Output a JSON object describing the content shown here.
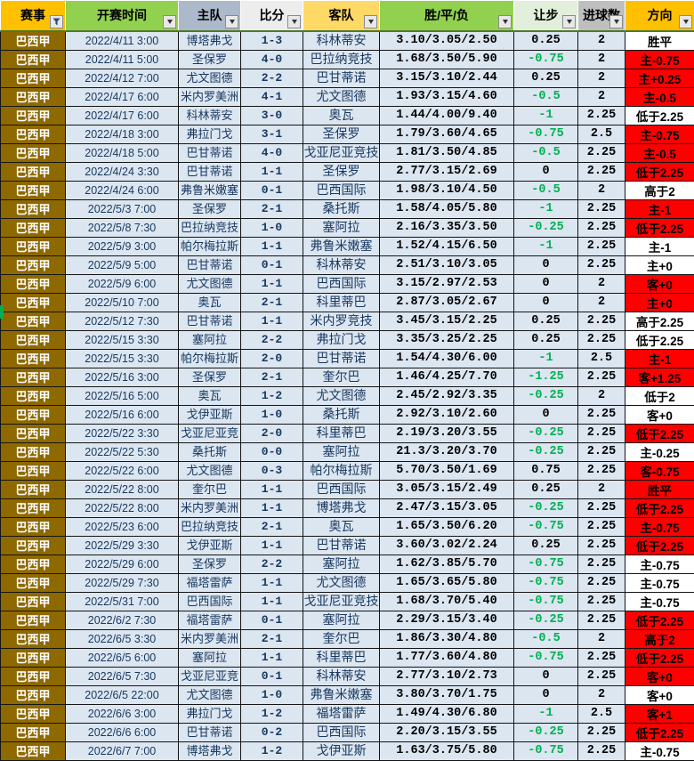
{
  "header": {
    "columns": [
      {
        "key": "league",
        "label": "赛事",
        "bg": "#FFC000",
        "button": "filter"
      },
      {
        "key": "time",
        "label": "开赛时间",
        "bg": "#92D050",
        "button": "dropdown"
      },
      {
        "key": "home",
        "label": "主队",
        "bg": "#ACB9CA",
        "button": "dropdown"
      },
      {
        "key": "score",
        "label": "比分",
        "bg": "#EDEDED",
        "button": "dropdown"
      },
      {
        "key": "away",
        "label": "客队",
        "bg": "#FFD966",
        "button": "dropdown"
      },
      {
        "key": "odds",
        "label": "胜/平/负",
        "bg": "#92D050",
        "button": "dropdown"
      },
      {
        "key": "handicap",
        "label": "让步",
        "bg": "#E2EFDA",
        "button": "dropdown"
      },
      {
        "key": "goals",
        "label": "进球数",
        "bg": "#BFBFBF",
        "button": "dropdown"
      },
      {
        "key": "direction",
        "label": "方向",
        "bg": "#FFC000",
        "button": "dropdown"
      }
    ]
  },
  "colors": {
    "row_bg": "#DCE6F1",
    "league_bg": "#8E6900",
    "red": "#FF0000",
    "green": "#00B050",
    "navy": "#17375E",
    "grid": "#151515",
    "header_underline": "#4E7A27",
    "btn_bg": "#E8E8E8",
    "btn_border": "#8A8A8A"
  },
  "rows": [
    {
      "league": "巴西甲",
      "time": "2022/4/11 3:00",
      "home": "博塔弗戈",
      "score": "1-3",
      "away": "科林蒂安",
      "odds": "3.10/3.05/2.50",
      "handicap": "0.25",
      "goals": "2",
      "direction": "胜平",
      "dir_red": false
    },
    {
      "league": "巴西甲",
      "time": "2022/4/11 5:00",
      "home": "圣保罗",
      "score": "4-0",
      "away": "巴拉纳竞技",
      "odds": "1.68/3.50/5.90",
      "handicap": "-0.75",
      "goals": "2",
      "direction": "主-0.75",
      "dir_red": true
    },
    {
      "league": "巴西甲",
      "time": "2022/4/12 7:00",
      "home": "尤文图德",
      "score": "2-2",
      "away": "巴甘蒂诺",
      "odds": "3.15/3.10/2.44",
      "handicap": "0.25",
      "goals": "2",
      "direction": "主+0.25",
      "dir_red": true
    },
    {
      "league": "巴西甲",
      "time": "2022/4/17 6:00",
      "home": "米内罗美洲",
      "score": "4-1",
      "away": "尤文图德",
      "odds": "1.93/3.15/4.60",
      "handicap": "-0.5",
      "goals": "2",
      "direction": "主-0.5",
      "dir_red": true
    },
    {
      "league": "巴西甲",
      "time": "2022/4/17 6:00",
      "home": "科林蒂安",
      "score": "3-0",
      "away": "奥瓦",
      "odds": "1.44/4.00/9.40",
      "handicap": "-1",
      "goals": "2.25",
      "direction": "低于2.25",
      "dir_red": false
    },
    {
      "league": "巴西甲",
      "time": "2022/4/18 3:00",
      "home": "弗拉门戈",
      "score": "3-1",
      "away": "圣保罗",
      "odds": "1.79/3.60/4.65",
      "handicap": "-0.75",
      "goals": "2.5",
      "direction": "主-0.75",
      "dir_red": true
    },
    {
      "league": "巴西甲",
      "time": "2022/4/18 5:00",
      "home": "巴甘蒂诺",
      "score": "4-0",
      "away": "戈亚尼亚竞技",
      "odds": "1.81/3.50/4.85",
      "handicap": "-0.5",
      "goals": "2.25",
      "direction": "主-0.5",
      "dir_red": true
    },
    {
      "league": "巴西甲",
      "time": "2022/4/24 3:30",
      "home": "巴甘蒂诺",
      "score": "1-1",
      "away": "圣保罗",
      "odds": "2.77/3.15/2.69",
      "handicap": "0",
      "goals": "2.25",
      "direction": "低于2.25",
      "dir_red": true
    },
    {
      "league": "巴西甲",
      "time": "2022/4/24 6:00",
      "home": "弗鲁米嫩塞",
      "score": "0-1",
      "away": "巴西国际",
      "odds": "1.98/3.10/4.50",
      "handicap": "-0.5",
      "goals": "2",
      "direction": "高于2",
      "dir_red": false
    },
    {
      "league": "巴西甲",
      "time": "2022/5/3 7:00",
      "home": "圣保罗",
      "score": "2-1",
      "away": "桑托斯",
      "odds": "1.58/4.05/5.80",
      "handicap": "-1",
      "goals": "2.25",
      "direction": "主-1",
      "dir_red": true
    },
    {
      "league": "巴西甲",
      "time": "2022/5/8 7:30",
      "home": "巴拉纳竞技",
      "score": "1-0",
      "away": "塞阿拉",
      "odds": "2.16/3.35/3.50",
      "handicap": "-0.25",
      "goals": "2.25",
      "direction": "低于2.25",
      "dir_red": true
    },
    {
      "league": "巴西甲",
      "time": "2022/5/9 3:00",
      "home": "帕尔梅拉斯",
      "score": "1-1",
      "away": "弗鲁米嫩塞",
      "odds": "1.52/4.15/6.50",
      "handicap": "-1",
      "goals": "2.25",
      "direction": "主-1",
      "dir_red": false
    },
    {
      "league": "巴西甲",
      "time": "2022/5/9 5:00",
      "home": "巴甘蒂诺",
      "score": "0-1",
      "away": "科林蒂安",
      "odds": "2.51/3.10/3.05",
      "handicap": "0",
      "goals": "2.25",
      "direction": "主+0",
      "dir_red": false
    },
    {
      "league": "巴西甲",
      "time": "2022/5/9 6:00",
      "home": "尤文图德",
      "score": "1-1",
      "away": "巴西国际",
      "odds": "3.15/2.97/2.53",
      "handicap": "0",
      "goals": "2",
      "direction": "客+0",
      "dir_red": true
    },
    {
      "league": "巴西甲",
      "time": "2022/5/10 7:00",
      "home": "奥瓦",
      "score": "2-1",
      "away": "科里蒂巴",
      "odds": "2.87/3.05/2.67",
      "handicap": "0",
      "goals": "2",
      "direction": "主+0",
      "dir_red": true
    },
    {
      "league": "巴西甲",
      "time": "2022/5/12 7:30",
      "home": "巴甘蒂诺",
      "score": "1-1",
      "away": "米内罗竞技",
      "odds": "3.45/3.15/2.25",
      "handicap": "0.25",
      "goals": "2.25",
      "direction": "高于2.25",
      "dir_red": false
    },
    {
      "league": "巴西甲",
      "time": "2022/5/15 3:30",
      "home": "塞阿拉",
      "score": "2-2",
      "away": "弗拉门戈",
      "odds": "3.35/3.25/2.25",
      "handicap": "0.25",
      "goals": "2.25",
      "direction": "低于2.25",
      "dir_red": false
    },
    {
      "league": "巴西甲",
      "time": "2022/5/15 3:30",
      "home": "帕尔梅拉斯",
      "score": "2-0",
      "away": "巴甘蒂诺",
      "odds": "1.54/4.30/6.00",
      "handicap": "-1",
      "goals": "2.5",
      "direction": "主-1",
      "dir_red": true
    },
    {
      "league": "巴西甲",
      "time": "2022/5/16 3:00",
      "home": "圣保罗",
      "score": "2-1",
      "away": "奎尔巴",
      "odds": "1.46/4.25/7.70",
      "handicap": "-1.25",
      "goals": "2.25",
      "direction": "客+1.25",
      "dir_red": true
    },
    {
      "league": "巴西甲",
      "time": "2022/5/16 5:00",
      "home": "奥瓦",
      "score": "1-2",
      "away": "尤文图德",
      "odds": "2.45/2.92/3.35",
      "handicap": "-0.25",
      "goals": "2",
      "direction": "低于2",
      "dir_red": false
    },
    {
      "league": "巴西甲",
      "time": "2022/5/16 6:00",
      "home": "戈伊亚斯",
      "score": "1-0",
      "away": "桑托斯",
      "odds": "2.92/3.10/2.60",
      "handicap": "0",
      "goals": "2.25",
      "direction": "客+0",
      "dir_red": false
    },
    {
      "league": "巴西甲",
      "time": "2022/5/22 3:30",
      "home": "戈亚尼亚竞技",
      "score": "2-0",
      "away": "科里蒂巴",
      "odds": "2.19/3.20/3.55",
      "handicap": "-0.25",
      "goals": "2.25",
      "direction": "低于2.25",
      "dir_red": true
    },
    {
      "league": "巴西甲",
      "time": "2022/5/22 5:30",
      "home": "桑托斯",
      "score": "0-0",
      "away": "塞阿拉",
      "odds": "21.3/3.20/3.70",
      "handicap": "-0.25",
      "goals": "2.25",
      "direction": "主-0.25",
      "dir_red": false
    },
    {
      "league": "巴西甲",
      "time": "2022/5/22 6:00",
      "home": "尤文图德",
      "score": "0-3",
      "away": "帕尔梅拉斯",
      "odds": "5.70/3.50/1.69",
      "handicap": "0.75",
      "goals": "2.25",
      "direction": "客-0.75",
      "dir_red": true
    },
    {
      "league": "巴西甲",
      "time": "2022/5/22 8:00",
      "home": "奎尔巴",
      "score": "1-1",
      "away": "巴西国际",
      "odds": "3.05/3.15/2.49",
      "handicap": "0.25",
      "goals": "2",
      "direction": "胜平",
      "dir_red": true
    },
    {
      "league": "巴西甲",
      "time": "2022/5/22 8:00",
      "home": "米内罗美洲",
      "score": "1-1",
      "away": "博塔弗戈",
      "odds": "2.47/3.15/3.05",
      "handicap": "-0.25",
      "goals": "2.25",
      "direction": "低于2.25",
      "dir_red": true
    },
    {
      "league": "巴西甲",
      "time": "2022/5/23 6:00",
      "home": "巴拉纳竞技",
      "score": "2-1",
      "away": "奥瓦",
      "odds": "1.65/3.50/6.20",
      "handicap": "-0.75",
      "goals": "2.25",
      "direction": "主-0.75",
      "dir_red": true
    },
    {
      "league": "巴西甲",
      "time": "2022/5/29 3:30",
      "home": "戈伊亚斯",
      "score": "1-1",
      "away": "巴甘蒂诺",
      "odds": "3.60/3.02/2.24",
      "handicap": "0.25",
      "goals": "2.25",
      "direction": "低于2.25",
      "dir_red": true
    },
    {
      "league": "巴西甲",
      "time": "2022/5/29 6:00",
      "home": "圣保罗",
      "score": "2-2",
      "away": "塞阿拉",
      "odds": "1.62/3.85/5.70",
      "handicap": "-0.75",
      "goals": "2.25",
      "direction": "主-0.75",
      "dir_red": false
    },
    {
      "league": "巴西甲",
      "time": "2022/5/29 7:30",
      "home": "福塔雷萨",
      "score": "1-1",
      "away": "尤文图德",
      "odds": "1.65/3.65/5.80",
      "handicap": "-0.75",
      "goals": "2.25",
      "direction": "主-0.75",
      "dir_red": false
    },
    {
      "league": "巴西甲",
      "time": "2022/5/31 7:00",
      "home": "巴西国际",
      "score": "1-1",
      "away": "戈亚尼亚竞技",
      "odds": "1.68/3.70/5.40",
      "handicap": "-0.75",
      "goals": "2.25",
      "direction": "主-0.75",
      "dir_red": false
    },
    {
      "league": "巴西甲",
      "time": "2022/6/2 7:30",
      "home": "福塔雷萨",
      "score": "0-1",
      "away": "塞阿拉",
      "odds": "2.29/3.15/3.40",
      "handicap": "-0.25",
      "goals": "2.25",
      "direction": "低于2.25",
      "dir_red": true
    },
    {
      "league": "巴西甲",
      "time": "2022/6/5 3:30",
      "home": "米内罗美洲",
      "score": "2-1",
      "away": "奎尔巴",
      "odds": "1.86/3.30/4.80",
      "handicap": "-0.5",
      "goals": "2",
      "direction": "高于2",
      "dir_red": true
    },
    {
      "league": "巴西甲",
      "time": "2022/6/5 6:00",
      "home": "塞阿拉",
      "score": "1-1",
      "away": "科里蒂巴",
      "odds": "1.77/3.60/4.80",
      "handicap": "-0.75",
      "goals": "2.25",
      "direction": "低于2.25",
      "dir_red": true
    },
    {
      "league": "巴西甲",
      "time": "2022/6/5 7:30",
      "home": "戈亚尼亚竞技",
      "score": "0-1",
      "away": "科林蒂安",
      "odds": "2.77/3.10/2.73",
      "handicap": "0",
      "goals": "2.25",
      "direction": "客+0",
      "dir_red": true
    },
    {
      "league": "巴西甲",
      "time": "2022/6/5 22:00",
      "home": "尤文图德",
      "score": "1-0",
      "away": "弗鲁米嫩塞",
      "odds": "3.80/3.70/1.75",
      "handicap": "0",
      "goals": "2",
      "direction": "客+0",
      "dir_red": false
    },
    {
      "league": "巴西甲",
      "time": "2022/6/6 3:00",
      "home": "弗拉门戈",
      "score": "1-2",
      "away": "福塔雷萨",
      "odds": "1.49/4.30/6.80",
      "handicap": "-1",
      "goals": "2.5",
      "direction": "客+1",
      "dir_red": true
    },
    {
      "league": "巴西甲",
      "time": "2022/6/6 6:00",
      "home": "巴甘蒂诺",
      "score": "0-2",
      "away": "巴西国际",
      "odds": "2.20/3.15/3.55",
      "handicap": "-0.25",
      "goals": "2.25",
      "direction": "低于2.25",
      "dir_red": true
    },
    {
      "league": "巴西甲",
      "time": "2022/6/7 7:00",
      "home": "博塔弗戈",
      "score": "1-2",
      "away": "戈伊亚斯",
      "odds": "1.63/3.75/5.80",
      "handicap": "-0.75",
      "goals": "2.25",
      "direction": "主-0.75",
      "dir_red": false
    }
  ]
}
